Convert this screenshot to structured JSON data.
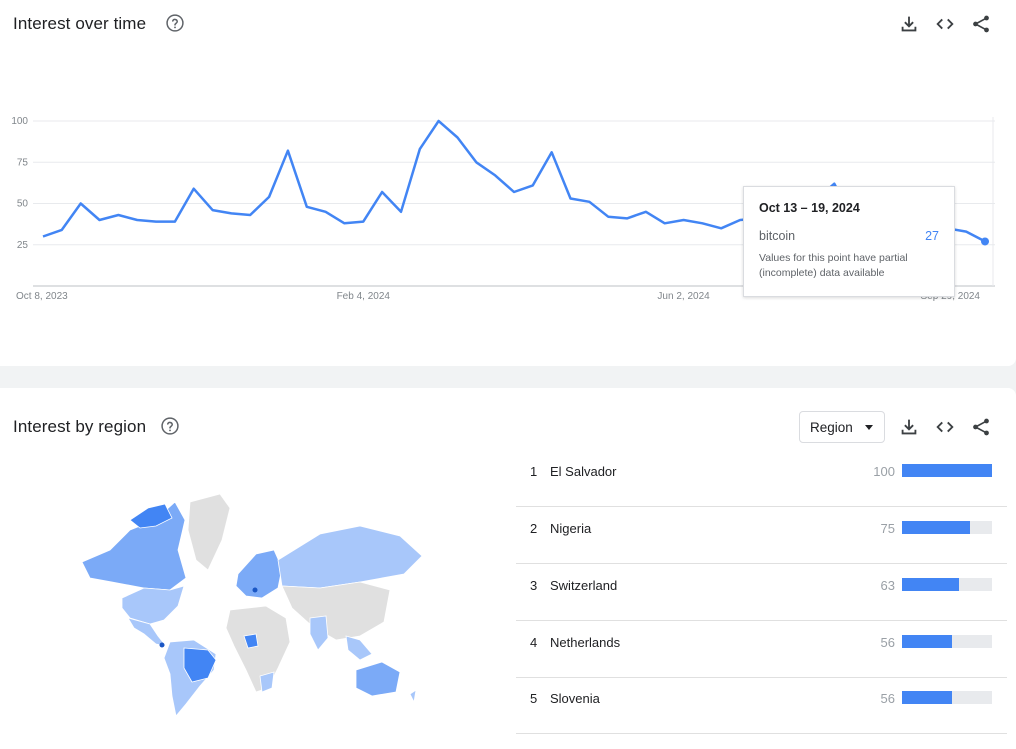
{
  "time_card": {
    "title": "Interest over time",
    "help_icon": "question-circle-icon",
    "tools": [
      "download-icon",
      "embed-code-icon",
      "share-icon"
    ]
  },
  "chart_data": {
    "type": "line",
    "yticks": [
      25,
      50,
      75,
      100
    ],
    "ylim": [
      0,
      100
    ],
    "xtick_labels": [
      "Oct 8, 2023",
      "Feb 4, 2024",
      "Jun 2, 2024",
      "Sep 29, 2024"
    ],
    "grid": true,
    "series": [
      {
        "values": [
          30,
          34,
          50,
          40,
          43,
          40,
          39,
          39,
          59,
          46,
          44,
          43,
          54,
          82,
          48,
          45,
          38,
          39,
          57,
          45,
          83,
          100,
          90,
          75,
          67,
          57,
          61,
          81,
          53,
          51,
          42,
          41,
          45,
          38,
          40,
          38,
          35,
          40,
          41,
          40,
          46,
          52,
          62,
          40,
          36,
          37,
          36,
          36,
          35,
          33,
          27
        ],
        "color": "#4285f4"
      }
    ]
  },
  "tooltip": {
    "date": "Oct 13 – 19, 2024",
    "term": "bitcoin",
    "value": "27",
    "note": "Values for this point have partial (incomplete) data available"
  },
  "region_card": {
    "title": "Interest by region",
    "help_icon": "question-circle-icon",
    "select_label": "Region",
    "tools": [
      "download-icon",
      "embed-code-icon",
      "share-icon"
    ]
  },
  "regions": [
    {
      "rank": "1",
      "name": "El Salvador",
      "value": 100
    },
    {
      "rank": "2",
      "name": "Nigeria",
      "value": 75
    },
    {
      "rank": "3",
      "name": "Switzerland",
      "value": 63
    },
    {
      "rank": "4",
      "name": "Netherlands",
      "value": 56
    },
    {
      "rank": "5",
      "name": "Slovenia",
      "value": 56
    }
  ],
  "colors": {
    "accent": "#4285f4",
    "map_light": "#a8c7fa",
    "map_mid": "#7baaf7",
    "map_dark": "#4285f4",
    "map_none": "#e0e0e0"
  }
}
